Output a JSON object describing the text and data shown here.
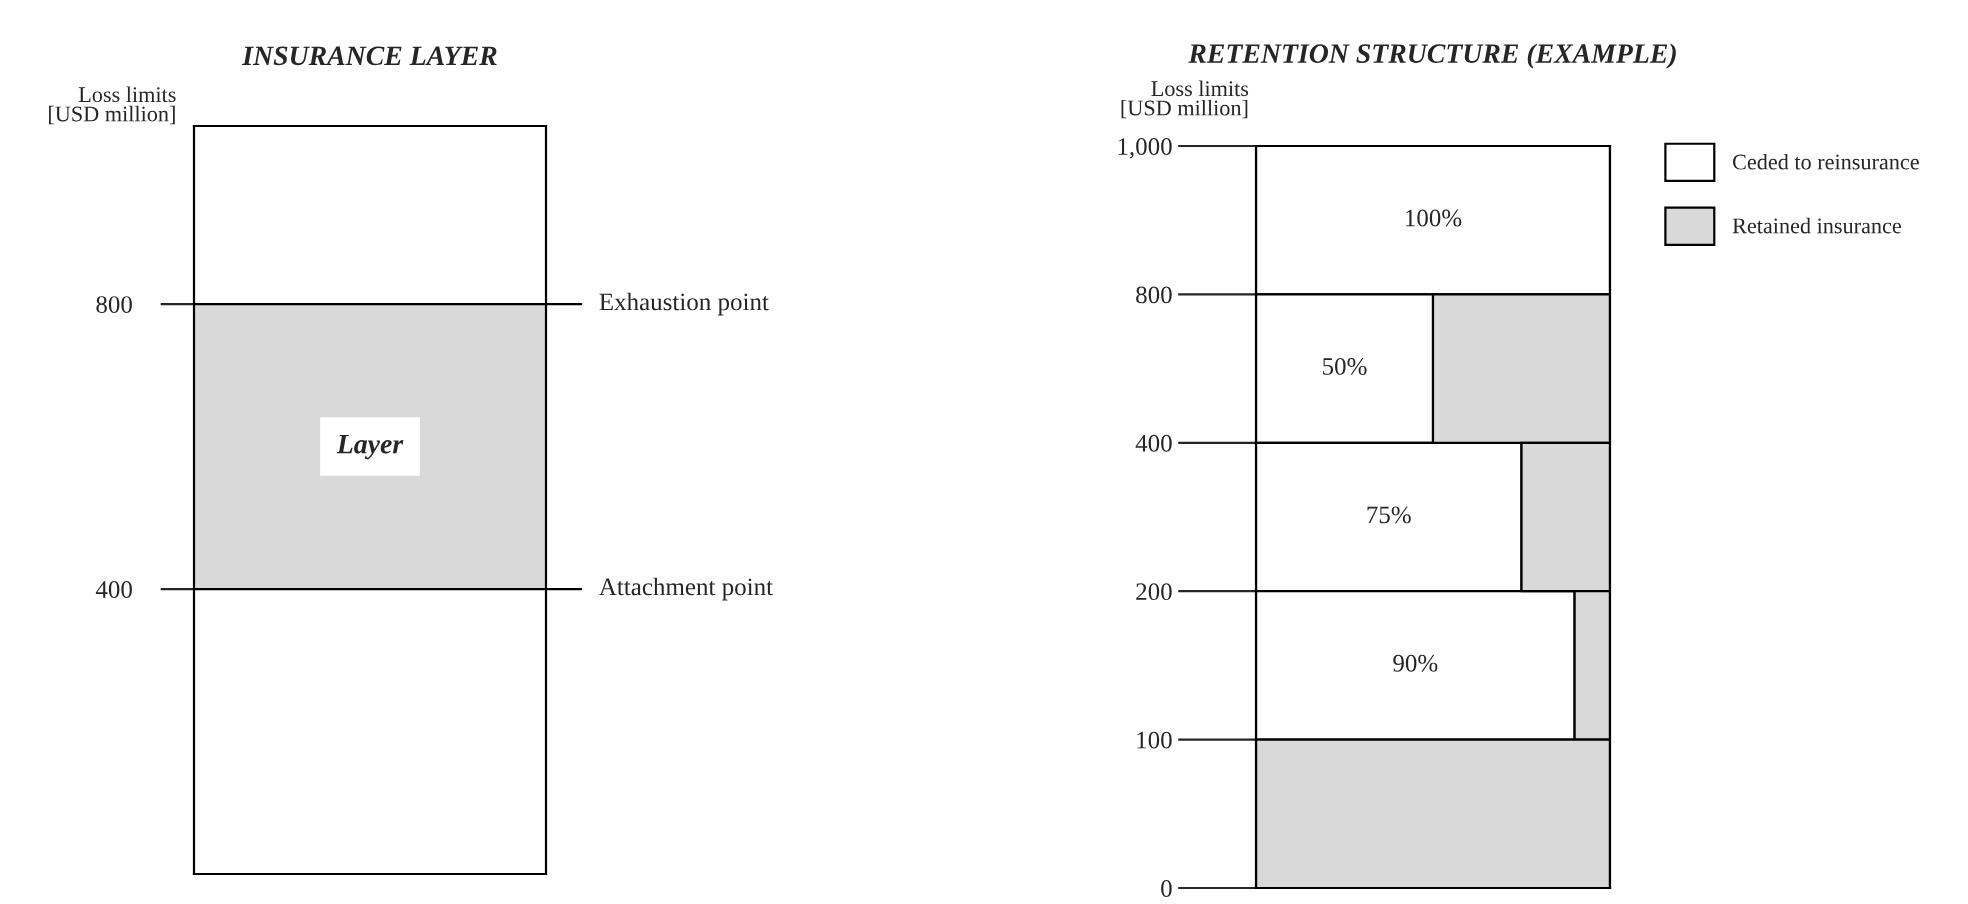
{
  "chart_data": [
    {
      "type": "bar",
      "title": "INSURANCE LAYER",
      "ylabel": "Loss limits\n[USD million]",
      "categories": [
        null
      ],
      "tick_labels": "y",
      "values": [
        400
      ],
      "base": [
        400
      ],
      "colors": [
        "#d9d9d9"
      ],
      "value_labels": [
        "Layer"
      ],
      "ylim": [
        0,
        1050
      ],
      "yticks": [
        400,
        800
      ],
      "ref_lines": [
        {
          "axis": "y",
          "value": 800,
          "label": "Exhaustion point"
        },
        {
          "axis": "y",
          "value": 400,
          "label": "Attachment point"
        }
      ]
    },
    {
      "type": "bar",
      "orientation": "horizontal",
      "stacked": true,
      "title": "RETENTION STRUCTURE (EXAMPLE)",
      "ylabel": "Loss limits\n[USD million]",
      "categories": [
        null,
        null,
        null,
        null,
        null
      ],
      "xlim": [
        0,
        100
      ],
      "tick_labels": "y",
      "legend": "right",
      "annotations": [
        "1,000",
        "800",
        "400",
        "200",
        "100",
        "0"
      ],
      "series": [
        {
          "name": "Ceded to reinsurance",
          "color": "#ffffff",
          "values": [
            100,
            50,
            75,
            90,
            0
          ],
          "value_labels": [
            "100%",
            "50%",
            "75%",
            "90%",
            null
          ]
        },
        {
          "name": "Retained insurance",
          "color": "#d9d9d9",
          "values": [
            0,
            50,
            25,
            10,
            100
          ]
        }
      ]
    }
  ]
}
